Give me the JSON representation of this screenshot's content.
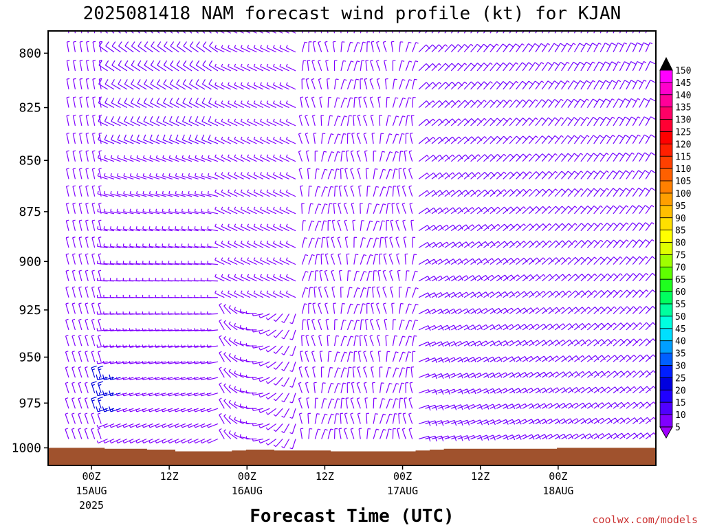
{
  "chart_data": {
    "type": "wind-barb-profile",
    "title": "2025081418 NAM forecast wind profile (kt) for KJAN",
    "xlabel": "Forecast Time (UTC)",
    "ylabel": "",
    "y_axis": {
      "ticks": [
        800,
        825,
        850,
        875,
        900,
        925,
        950,
        975,
        1000
      ],
      "tick_labels": [
        "800",
        "825",
        "850",
        "875",
        "900",
        "925",
        "950",
        "975",
        "1000"
      ],
      "range": [
        1010,
        790
      ]
    },
    "x_axis": {
      "ticks": [
        {
          "time": "00Z",
          "date": "15AUG",
          "year": "2025"
        },
        {
          "time": "12Z",
          "date": "",
          "year": ""
        },
        {
          "time": "00Z",
          "date": "16AUG",
          "year": ""
        },
        {
          "time": "12Z",
          "date": "",
          "year": ""
        },
        {
          "time": "00Z",
          "date": "17AUG",
          "year": ""
        },
        {
          "time": "12Z",
          "date": "",
          "year": ""
        },
        {
          "time": "00Z",
          "date": "18AUG",
          "year": ""
        }
      ]
    },
    "colorbar": {
      "labels": [
        "150",
        "145",
        "140",
        "135",
        "130",
        "125",
        "120",
        "115",
        "110",
        "105",
        "100",
        "95",
        "90",
        "85",
        "80",
        "75",
        "70",
        "65",
        "60",
        "55",
        "50",
        "45",
        "40",
        "35",
        "30",
        "25",
        "20",
        "15",
        "10",
        "5"
      ],
      "colors": [
        "#ff00ff",
        "#ff00cc",
        "#ff0099",
        "#ff0066",
        "#ff0033",
        "#ff0000",
        "#ff2000",
        "#ff4000",
        "#ff6000",
        "#ff8000",
        "#ff9f00",
        "#ffbf00",
        "#ffdf00",
        "#ffff00",
        "#dfff00",
        "#9fff00",
        "#5fff00",
        "#1fff1f",
        "#00ff5f",
        "#00ff9f",
        "#00ffdf",
        "#00dfff",
        "#009fff",
        "#005fff",
        "#001fff",
        "#0000df",
        "#2000ff",
        "#5000ff",
        "#8000ff",
        "#a000ff"
      ]
    },
    "wind_barbs": {
      "units": "kt",
      "grid": "forecast hours 0-84 (3-hourly) × 800-1000 hPa",
      "dominant_speed_range_kt": [
        5,
        15
      ],
      "regimes": [
        {
          "period": "15AUG 00Z-06Z",
          "direction": "north-northwesterly",
          "speed_kt": 8
        },
        {
          "period": "15AUG 06Z-16AUG 00Z",
          "direction": "westerly",
          "speed_kt": 10
        },
        {
          "period": "16AUG 00Z-16AUG 12Z",
          "direction": "west-northwesterly aloft, variable near surface",
          "speed_kt": 8
        },
        {
          "period": "16AUG 12Z-17AUG 06Z",
          "direction": "northerly",
          "speed_kt": 7
        },
        {
          "period": "17AUG 06Z-18AUG 12Z",
          "direction": "northeasterly to easterly",
          "speed_kt": 10
        }
      ]
    },
    "terrain": {
      "color": "#a0522d",
      "surface_pressure_hpa": [
        1000,
        1000,
        1000,
        1000,
        1000.5,
        1000.5,
        1000.5,
        1001,
        1001,
        1002,
        1002,
        1002,
        1002,
        1001.5,
        1001,
        1001,
        1001.5,
        1001.5,
        1001.5,
        1001.5,
        1002,
        1002,
        1002,
        1002,
        1002,
        1002,
        1001.5,
        1001,
        1000.5,
        1000.5,
        1000.5,
        1000.5,
        1000.5,
        1000.5,
        1000.5,
        1000.5,
        1000,
        1000,
        1000,
        1000,
        1000,
        1000,
        1000
      ]
    }
  },
  "credit": "coolwx.com/models"
}
